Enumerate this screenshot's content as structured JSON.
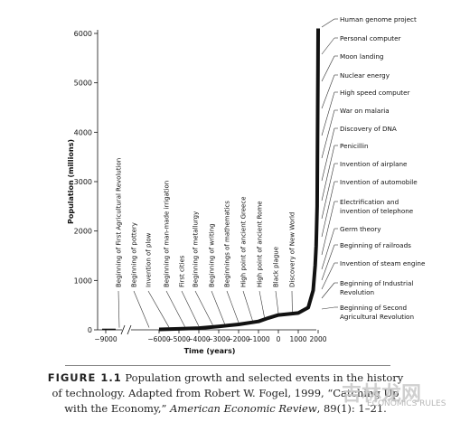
{
  "chart_data": {
    "type": "line",
    "ylabel": "Population (millions)",
    "xlabel": "Time (years)",
    "xlim": [
      -9600,
      2100
    ],
    "ylim": [
      0,
      6200
    ],
    "y_ticks": [
      0,
      1000,
      2000,
      3000,
      4000,
      5000,
      6000
    ],
    "x_ticks": [
      -9000,
      -6000,
      -5000,
      -4000,
      -3000,
      -2000,
      -1000,
      0,
      1000,
      2000
    ],
    "axis_break": true,
    "series": [
      {
        "values": [
          {
            "x": -9000,
            "y": 5
          },
          {
            "x": -6000,
            "y": 10
          },
          {
            "x": -5000,
            "y": 20
          },
          {
            "x": -4000,
            "y": 35
          },
          {
            "x": -3000,
            "y": 70
          },
          {
            "x": -2000,
            "y": 110
          },
          {
            "x": -1000,
            "y": 170
          },
          {
            "x": -500,
            "y": 240
          },
          {
            "x": 0,
            "y": 300
          },
          {
            "x": 500,
            "y": 320
          },
          {
            "x": 1000,
            "y": 340
          },
          {
            "x": 1500,
            "y": 450
          },
          {
            "x": 1750,
            "y": 800
          },
          {
            "x": 1850,
            "y": 1300
          },
          {
            "x": 1900,
            "y": 1700
          },
          {
            "x": 1950,
            "y": 2500
          },
          {
            "x": 1975,
            "y": 4100
          },
          {
            "x": 1990,
            "y": 5300
          },
          {
            "x": 2000,
            "y": 6100
          }
        ]
      }
    ],
    "early_events": [
      {
        "label": "Beginning of First Agricultural Revolution",
        "x": -8000
      },
      {
        "label": "Beginning of pottery",
        "x": -6500
      },
      {
        "label": "Invention of plow",
        "x": -5500
      },
      {
        "label": "Beginning of man-made irrigation",
        "x": -4700
      },
      {
        "label": "First cities",
        "x": -4000
      },
      {
        "label": "Beginning of metallurgy",
        "x": -3300
      },
      {
        "label": "Beginning of writing",
        "x": -2700
      },
      {
        "label": "Beginnings of mathematics",
        "x": -2000
      },
      {
        "label": "High point of ancient Greece",
        "x": -1300
      },
      {
        "label": "High point of ancient Rome",
        "x": -700
      },
      {
        "label": "Black plague",
        "x": 0
      },
      {
        "label": "Discovery of New World",
        "x": 700
      }
    ],
    "modern_events": [
      "Human genome project",
      "Personal computer",
      "Moon landing",
      "Nuclear energy",
      "High speed computer",
      "War on malaria",
      "Discovery of DNA",
      "Penicillin",
      "Invention of airplane",
      "Invention of automobile",
      "Electrification and\ninvention of telephone",
      "Germ theory",
      "Beginning of railroads",
      "Invention of steam engine",
      "Beginning of Industrial\nRevolution",
      "Beginning of Second\nAgricultural Revolution"
    ]
  },
  "caption": {
    "figure_label": "FIGURE 1.1",
    "line1": "Population growth and selected events in the history",
    "line2": "of technology. Adapted from Robert W. Fogel, 1999, “Catching Up",
    "line3_prefix": "with the Economy,”",
    "line3_journal": "American Economic Review",
    "line3_suffix": ", 89(1): 1–21."
  },
  "watermark": {
    "logo_text": "吉林龙网",
    "text": "ECONOMICS RULES"
  }
}
